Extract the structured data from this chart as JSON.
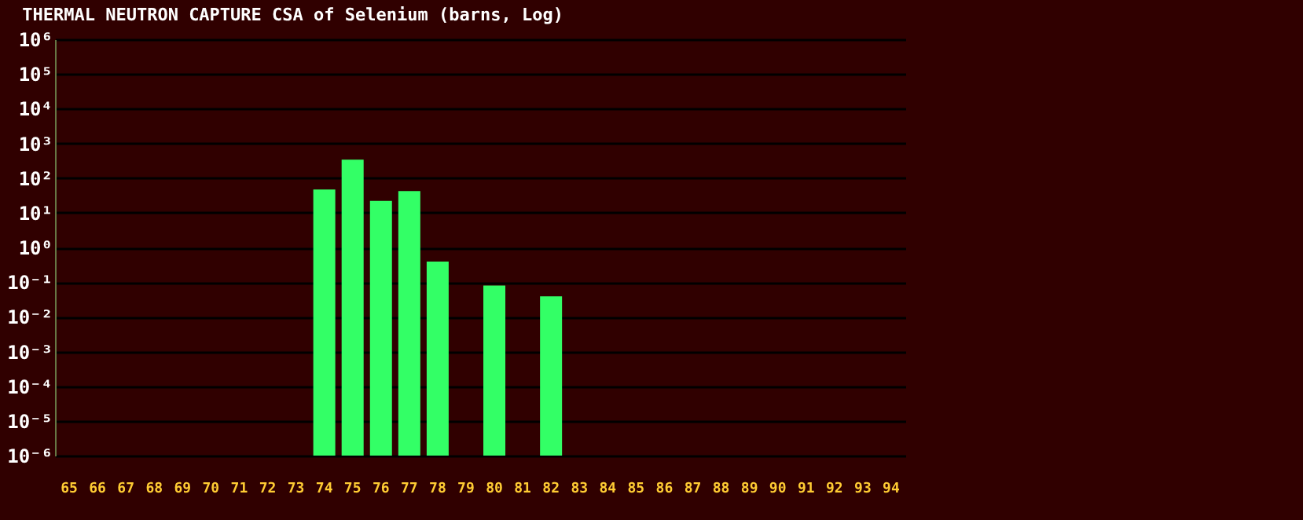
{
  "chart_data": {
    "type": "bar",
    "title": "THERMAL NEUTRON CAPTURE CSA of Selenium (barns, Log)",
    "categories": [
      "65",
      "66",
      "67",
      "68",
      "69",
      "70",
      "71",
      "72",
      "73",
      "74",
      "75",
      "76",
      "77",
      "78",
      "79",
      "80",
      "81",
      "82",
      "83",
      "84",
      "85",
      "86",
      "87",
      "88",
      "89",
      "90",
      "91",
      "92",
      "93",
      "94"
    ],
    "values": [
      null,
      null,
      null,
      null,
      null,
      null,
      null,
      null,
      null,
      47,
      340,
      22,
      42,
      0.39,
      null,
      0.08,
      null,
      0.039,
      null,
      null,
      null,
      null,
      null,
      null,
      null,
      null,
      null,
      null,
      null,
      null
    ],
    "color": "#33ff66",
    "log": true,
    "grid": "y",
    "ylim": [
      1e-06,
      1000000
    ],
    "yticks": [
      {
        "value": 1000000,
        "label": "10⁶"
      },
      {
        "value": 100000,
        "label": "10⁵"
      },
      {
        "value": 10000,
        "label": "10⁴"
      },
      {
        "value": 1000,
        "label": "10³"
      },
      {
        "value": 100,
        "label": "10²"
      },
      {
        "value": 10,
        "label": "10¹"
      },
      {
        "value": 1,
        "label": "10⁰"
      },
      {
        "value": 0.1,
        "label": "10⁻¹"
      },
      {
        "value": 0.01,
        "label": "10⁻²"
      },
      {
        "value": 0.001,
        "label": "10⁻³"
      },
      {
        "value": 0.0001,
        "label": "10⁻⁴"
      },
      {
        "value": 1e-05,
        "label": "10⁻⁵"
      },
      {
        "value": 1e-06,
        "label": "10⁻⁶"
      }
    ]
  }
}
